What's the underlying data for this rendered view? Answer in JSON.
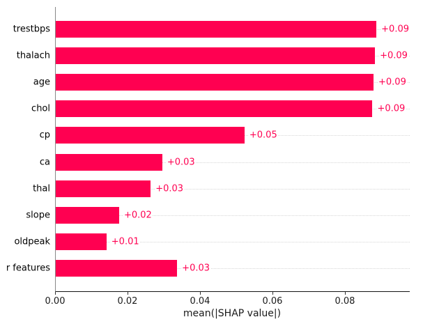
{
  "chart_data": {
    "type": "bar",
    "orientation": "horizontal",
    "title": "",
    "xlabel": "mean(|SHAP value|)",
    "ylabel": "",
    "categories": [
      "trestbps",
      "thalach",
      "age",
      "chol",
      "cp",
      "ca",
      "thal",
      "slope",
      "oldpeak",
      "r features"
    ],
    "values": [
      0.0885,
      0.0881,
      0.0877,
      0.0874,
      0.0521,
      0.0294,
      0.0262,
      0.0175,
      0.014,
      0.0335
    ],
    "bar_labels": [
      "+0.09",
      "+0.09",
      "+0.09",
      "+0.09",
      "+0.05",
      "+0.03",
      "+0.03",
      "+0.02",
      "+0.01",
      "+0.03"
    ],
    "xticks": [
      "0.00",
      "0.02",
      "0.04",
      "0.06",
      "0.08"
    ],
    "xtick_values": [
      0.0,
      0.02,
      0.04,
      0.06,
      0.08
    ],
    "xlim": [
      0,
      0.0977
    ],
    "grid": "dotted-horizontal",
    "legend": "none",
    "bar_color": "#ff0051",
    "value_label_color": "#ff0051",
    "gridline_color": "#d6d6d6",
    "left_spine_color": "#888888",
    "bottom_spine_color": "#111111"
  }
}
